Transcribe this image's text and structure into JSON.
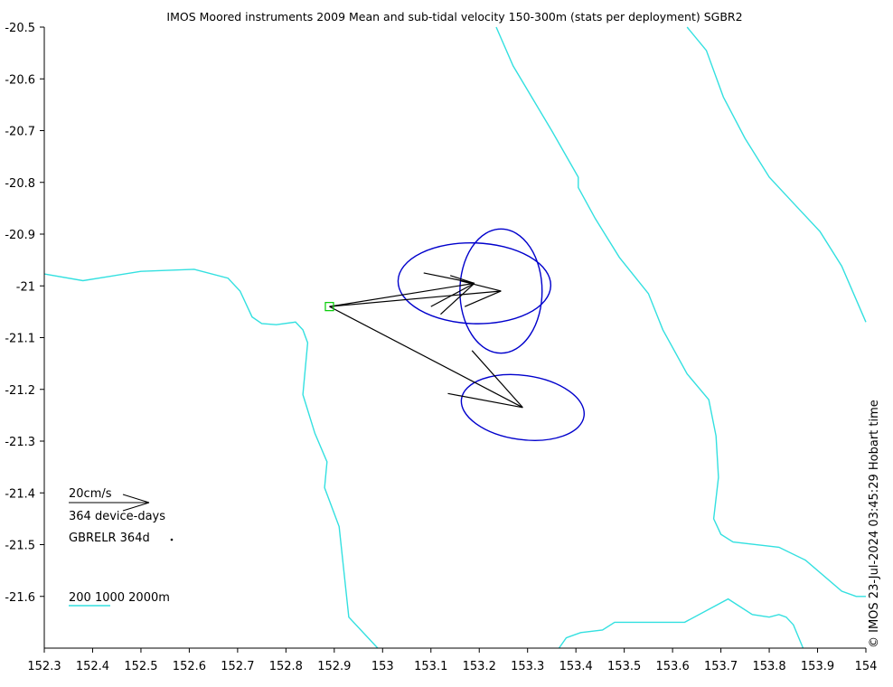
{
  "chart_data": {
    "type": "scatter",
    "title": "IMOS Moored instruments 2009 Mean and sub-tidal velocity 150-300m (stats per deployment) SGBR2",
    "credit": "© IMOS 23-Jul-2024 03:45:29 Hobart time",
    "xlim": [
      152.3,
      154.0
    ],
    "ylim": [
      -21.7,
      -20.5
    ],
    "x_ticks": [
      "152.3",
      "152.4",
      "152.5",
      "152.6",
      "152.7",
      "152.8",
      "152.9",
      "153",
      "153.1",
      "153.2",
      "153.3",
      "153.4",
      "153.5",
      "153.6",
      "153.7",
      "153.8",
      "153.9",
      "154"
    ],
    "y_ticks": [
      "-20.5",
      "-20.6",
      "-20.7",
      "-20.8",
      "-20.9",
      "-21",
      "-21.1",
      "-21.2",
      "-21.3",
      "-21.4",
      "-21.5",
      "-21.6"
    ],
    "grid": false,
    "mooring": {
      "name": "GBRELR",
      "lon": 152.89,
      "lat": -21.04,
      "color": "#00cc00"
    },
    "mean_vectors": [
      {
        "tip": [
          153.29,
          -21.235
        ],
        "ellipse": {
          "cx": 153.29,
          "cy": -21.235,
          "rx": 0.128,
          "ry": 0.062,
          "angle": 8
        }
      },
      {
        "tip": [
          153.245,
          -21.01
        ],
        "ellipse": {
          "cx": 153.245,
          "cy": -21.01,
          "rx": 0.085,
          "ry": 0.12,
          "angle": 0
        }
      },
      {
        "tip": [
          153.19,
          -20.995
        ],
        "ellipse": {
          "cx": 153.19,
          "cy": -20.995,
          "rx": 0.158,
          "ry": 0.078,
          "angle": 2
        }
      }
    ],
    "arrowheads": [
      {
        "tip": [
          153.29,
          -21.235
        ],
        "ends": [
          [
            153.135,
            -21.208
          ],
          [
            153.185,
            -21.125
          ]
        ]
      },
      {
        "tip": [
          153.245,
          -21.01
        ],
        "ends": [
          [
            153.16,
            -20.99
          ],
          [
            153.17,
            -21.04
          ]
        ]
      },
      {
        "tip": [
          153.19,
          -20.995
        ],
        "ends": [
          [
            153.085,
            -20.975
          ],
          [
            153.1,
            -21.04
          ]
        ]
      },
      {
        "tip": [
          153.19,
          -20.995
        ],
        "ends": [
          [
            153.12,
            -21.055
          ],
          [
            153.14,
            -20.98
          ]
        ]
      }
    ],
    "vector_color": "#000000",
    "ellipse_color": "#0000cc",
    "isobath_color": "#33e0e0",
    "isobaths": [
      [
        [
          152.3,
          -20.977
        ],
        [
          152.38,
          -20.99
        ],
        [
          152.5,
          -20.972
        ],
        [
          152.61,
          -20.968
        ],
        [
          152.68,
          -20.985
        ],
        [
          152.705,
          -21.01
        ],
        [
          152.73,
          -21.06
        ],
        [
          152.75,
          -21.073
        ],
        [
          152.78,
          -21.075
        ],
        [
          152.82,
          -21.07
        ],
        [
          152.835,
          -21.085
        ],
        [
          152.845,
          -21.11
        ],
        [
          152.835,
          -21.21
        ],
        [
          152.86,
          -21.285
        ],
        [
          152.885,
          -21.34
        ],
        [
          152.88,
          -21.39
        ],
        [
          152.91,
          -21.465
        ],
        [
          152.93,
          -21.64
        ],
        [
          152.99,
          -21.7
        ]
      ],
      [
        [
          153.235,
          -20.5
        ],
        [
          153.27,
          -20.575
        ],
        [
          153.35,
          -20.7
        ],
        [
          153.405,
          -20.79
        ],
        [
          153.405,
          -20.81
        ],
        [
          153.44,
          -20.87
        ],
        [
          153.49,
          -20.945
        ],
        [
          153.55,
          -21.015
        ],
        [
          153.58,
          -21.085
        ],
        [
          153.63,
          -21.17
        ],
        [
          153.675,
          -21.22
        ],
        [
          153.69,
          -21.29
        ],
        [
          153.695,
          -21.37
        ],
        [
          153.685,
          -21.45
        ],
        [
          153.7,
          -21.48
        ],
        [
          153.725,
          -21.495
        ],
        [
          153.82,
          -21.505
        ],
        [
          153.875,
          -21.53
        ],
        [
          153.95,
          -21.59
        ],
        [
          153.98,
          -21.6
        ],
        [
          154.0,
          -21.6
        ]
      ],
      [
        [
          153.63,
          -20.5
        ],
        [
          153.67,
          -20.545
        ],
        [
          153.705,
          -20.635
        ],
        [
          153.75,
          -20.715
        ],
        [
          153.8,
          -20.79
        ],
        [
          153.85,
          -20.84
        ],
        [
          153.905,
          -20.895
        ],
        [
          153.95,
          -20.962
        ],
        [
          154.0,
          -21.07
        ]
      ],
      [
        [
          153.365,
          -21.7
        ],
        [
          153.38,
          -21.68
        ],
        [
          153.41,
          -21.67
        ],
        [
          153.455,
          -21.665
        ],
        [
          153.48,
          -21.65
        ],
        [
          153.625,
          -21.65
        ],
        [
          153.715,
          -21.605
        ],
        [
          153.765,
          -21.635
        ],
        [
          153.8,
          -21.64
        ],
        [
          153.82,
          -21.635
        ],
        [
          153.835,
          -21.64
        ],
        [
          153.85,
          -21.655
        ],
        [
          153.87,
          -21.7
        ]
      ]
    ],
    "scale_vector": {
      "label": "20cm/s",
      "dx": 0.2,
      "dy": 0.0
    },
    "scale_ellipse_days": "364 device-days",
    "deployment_legend": [
      {
        "label": "GBRELR 364d"
      }
    ],
    "isobath_legend": "200 1000 2000m"
  }
}
